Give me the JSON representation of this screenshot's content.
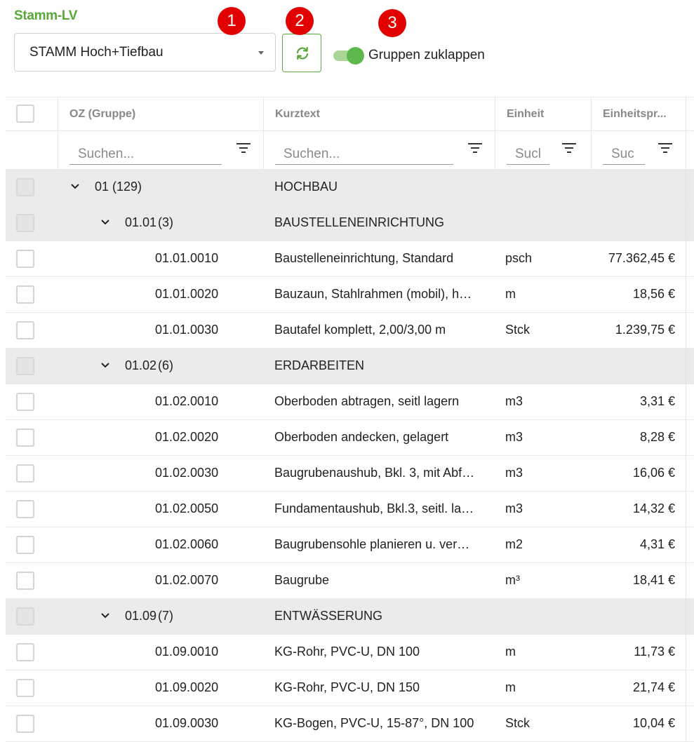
{
  "title": "Stamm-LV",
  "select": {
    "value": "STAMM Hoch+Tiefbau",
    "icon": "chevron-down-icon"
  },
  "refresh_icon": "refresh-icon",
  "toggle": {
    "label": "Gruppen zuklappen",
    "checked": true
  },
  "badges": [
    "1",
    "2",
    "3"
  ],
  "colors": {
    "accent": "#5aa83a",
    "badge": "#e30000",
    "group_row": "#ebebeb"
  },
  "columns": {
    "oz": "OZ (Gruppe)",
    "kurztext": "Kurztext",
    "einheit": "Einheit",
    "einheitspreis": "Einheitspr..."
  },
  "filters": {
    "oz": "Suchen...",
    "kurztext": "Suchen...",
    "einheit": "Sucl",
    "einheitspreis": "Suc"
  },
  "rows": [
    {
      "type": "group",
      "level": 0,
      "oz": "01",
      "count": "(129)",
      "kurztext": "HOCHBAU"
    },
    {
      "type": "group",
      "level": 1,
      "oz": "01.01",
      "count": "(3)",
      "kurztext": "BAUSTELLENEINRICHTUNG"
    },
    {
      "type": "item",
      "oz": "01.01.0010",
      "kurztext": "Baustelleneinrichtung, Standard",
      "einheit": "psch",
      "preis": "77.362,45 €"
    },
    {
      "type": "item",
      "oz": "01.01.0020",
      "kurztext": "Bauzaun, Stahlrahmen (mobil), h…",
      "einheit": "m",
      "preis": "18,56 €"
    },
    {
      "type": "item",
      "oz": "01.01.0030",
      "kurztext": "Bautafel komplett, 2,00/3,00 m",
      "einheit": "Stck",
      "preis": "1.239,75 €"
    },
    {
      "type": "group",
      "level": 1,
      "oz": "01.02",
      "count": "(6)",
      "kurztext": "ERDARBEITEN"
    },
    {
      "type": "item",
      "oz": "01.02.0010",
      "kurztext": "Oberboden abtragen, seitl lagern",
      "einheit": "m3",
      "preis": "3,31 €"
    },
    {
      "type": "item",
      "oz": "01.02.0020",
      "kurztext": "Oberboden andecken, gelagert",
      "einheit": "m3",
      "preis": "8,28 €"
    },
    {
      "type": "item",
      "oz": "01.02.0030",
      "kurztext": "Baugrubenaushub, Bkl. 3, mit Abf…",
      "einheit": "m3",
      "preis": "16,06 €"
    },
    {
      "type": "item",
      "oz": "01.02.0050",
      "kurztext": "Fundamentaushub, Bkl.3, seitl. la…",
      "einheit": "m3",
      "preis": "14,32 €"
    },
    {
      "type": "item",
      "oz": "01.02.0060",
      "kurztext": "Baugrubensohle planieren u. ver…",
      "einheit": "m2",
      "preis": "4,31 €"
    },
    {
      "type": "item",
      "oz": "01.02.0070",
      "kurztext": "Baugrube",
      "einheit": "m³",
      "preis": "18,41 €"
    },
    {
      "type": "group",
      "level": 1,
      "oz": "01.09",
      "count": "(7)",
      "kurztext": "ENTWÄSSERUNG"
    },
    {
      "type": "item",
      "oz": "01.09.0010",
      "kurztext": "KG-Rohr, PVC-U, DN 100",
      "einheit": "m",
      "preis": "11,73 €"
    },
    {
      "type": "item",
      "oz": "01.09.0020",
      "kurztext": "KG-Rohr, PVC-U, DN 150",
      "einheit": "m",
      "preis": "21,74 €"
    },
    {
      "type": "item",
      "oz": "01.09.0030",
      "kurztext": "KG-Bogen, PVC-U, 15-87°, DN 100",
      "einheit": "Stck",
      "preis": "10,04 €"
    }
  ]
}
